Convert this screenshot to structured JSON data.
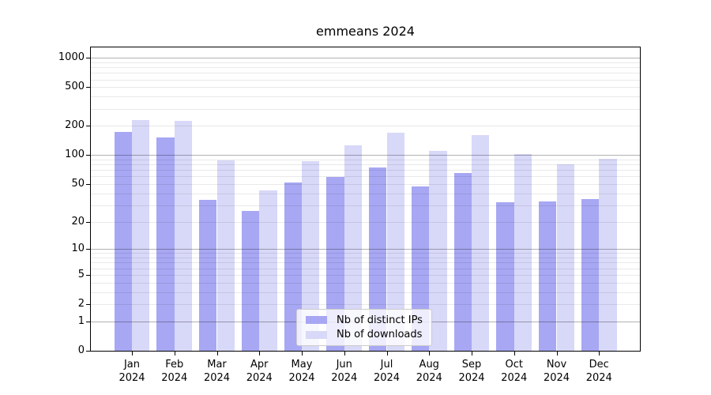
{
  "title": "emmeans 2024",
  "chart_data": {
    "type": "bar",
    "categories": [
      {
        "month": "Jan",
        "year": "2024"
      },
      {
        "month": "Feb",
        "year": "2024"
      },
      {
        "month": "Mar",
        "year": "2024"
      },
      {
        "month": "Apr",
        "year": "2024"
      },
      {
        "month": "May",
        "year": "2024"
      },
      {
        "month": "Jun",
        "year": "2024"
      },
      {
        "month": "Jul",
        "year": "2024"
      },
      {
        "month": "Aug",
        "year": "2024"
      },
      {
        "month": "Sep",
        "year": "2024"
      },
      {
        "month": "Oct",
        "year": "2024"
      },
      {
        "month": "Nov",
        "year": "2024"
      },
      {
        "month": "Dec",
        "year": "2024"
      }
    ],
    "series": [
      {
        "name": "Nb of distinct IPs",
        "color": "#a7a7f3",
        "values": [
          172,
          151,
          34,
          26,
          52,
          59,
          75,
          47,
          65,
          32,
          33,
          35
        ]
      },
      {
        "name": "Nb of downloads",
        "color": "#d8d8f8",
        "values": [
          230,
          225,
          89,
          43,
          86,
          127,
          170,
          111,
          161,
          103,
          80,
          91
        ]
      }
    ],
    "y_ticks": [
      0,
      1,
      2,
      5,
      10,
      20,
      50,
      100,
      200,
      500,
      1000
    ],
    "y_scale": "log10(value+1)",
    "ylim": [
      0,
      1280
    ],
    "xlabel": "",
    "ylabel": "",
    "grid": true,
    "legend_position": "inside-bottom-center"
  }
}
